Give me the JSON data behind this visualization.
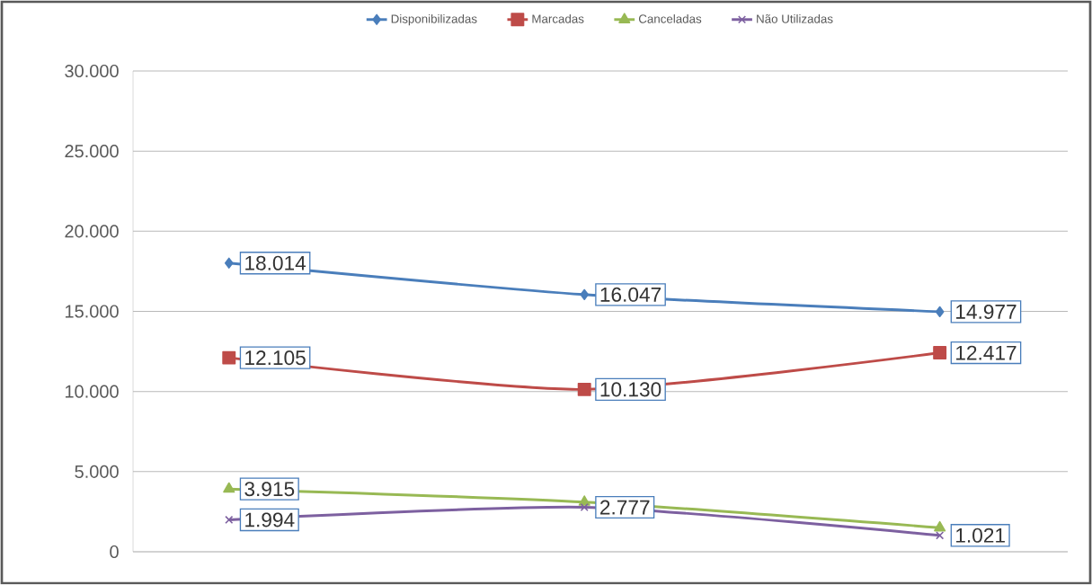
{
  "chart_data": {
    "type": "line",
    "categories": [
      null,
      null,
      null
    ],
    "ylim": [
      0,
      30000
    ],
    "yticks": [
      0,
      {
        "value": 5000,
        "label": "5.000"
      },
      {
        "value": 10000,
        "label": "10.000"
      },
      {
        "value": 15000,
        "label": "15.000"
      },
      {
        "value": 20000,
        "label": "20.000"
      },
      {
        "value": 25000,
        "label": "25.000"
      },
      {
        "value": 30000,
        "label": "30.000"
      }
    ],
    "grid": "y",
    "legend": "top",
    "series": [
      {
        "name": "Disponibilizadas",
        "color": "#4a7ebb",
        "marker": "diamond",
        "values": [
          18014,
          16047,
          14977
        ],
        "value_labels": [
          "18.014",
          "16.047",
          "14.977"
        ]
      },
      {
        "name": "Marcadas",
        "color": "#be4b48",
        "marker": "square",
        "values": [
          12105,
          10130,
          12417
        ],
        "value_labels": [
          "12.105",
          "10.130",
          "12.417"
        ]
      },
      {
        "name": "Canceladas",
        "color": "#98b954",
        "marker": "triangle",
        "values": [
          3915,
          3100,
          1500
        ],
        "value_labels": [
          "3.915",
          null,
          null
        ]
      },
      {
        "name": "Não Utilizadas",
        "color": "#7d60a0",
        "marker": "cross",
        "values": [
          1994,
          2777,
          1021
        ],
        "value_labels": [
          "1.994",
          "2.777",
          "1.021"
        ]
      }
    ]
  }
}
